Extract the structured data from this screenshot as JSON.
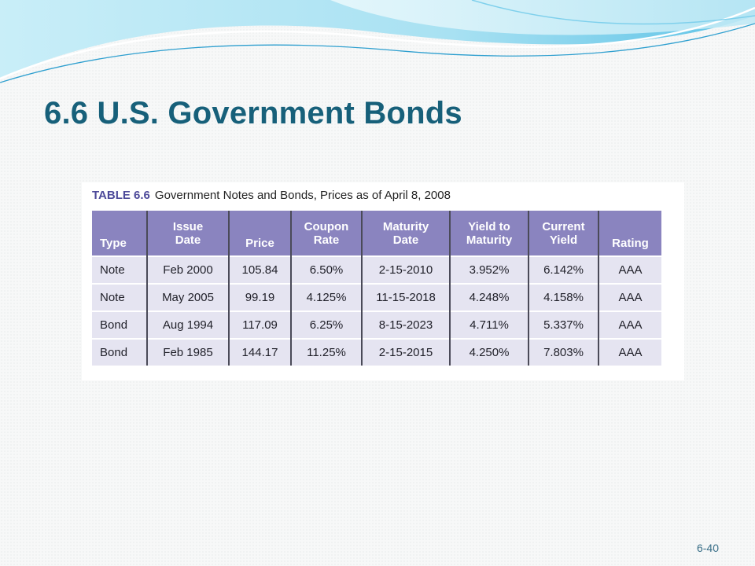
{
  "slide": {
    "title": "6.6 U.S. Government Bonds",
    "page_number": "6-40"
  },
  "table": {
    "label": "TABLE 6.6",
    "caption": "Government Notes and Bonds, Prices as of April 8, 2008",
    "headers": {
      "type": "Type",
      "issue_date_1": "Issue",
      "issue_date_2": "Date",
      "price": "Price",
      "coupon_1": "Coupon",
      "coupon_2": "Rate",
      "maturity_1": "Maturity",
      "maturity_2": "Date",
      "ytm_1": "Yield to",
      "ytm_2": "Maturity",
      "cy_1": "Current",
      "cy_2": "Yield",
      "rating": "Rating"
    },
    "rows": [
      [
        "Note",
        "Feb 2000",
        "105.84",
        "6.50%",
        "2-15-2010",
        "3.952%",
        "6.142%",
        "AAA"
      ],
      [
        "Note",
        "May 2005",
        "99.19",
        "4.125%",
        "11-15-2018",
        "4.248%",
        "4.158%",
        "AAA"
      ],
      [
        "Bond",
        "Aug 1994",
        "117.09",
        "6.25%",
        "8-15-2023",
        "4.711%",
        "5.337%",
        "AAA"
      ],
      [
        "Bond",
        "Feb 1985",
        "144.17",
        "11.25%",
        "2-15-2015",
        "4.250%",
        "7.803%",
        "AAA"
      ]
    ]
  },
  "colors": {
    "title": "#17607a",
    "header_bg": "#8a84bf",
    "row_bg": "#e5e4f1",
    "wave_light": "#bfe9f5",
    "wave_dark": "#2e9fcf"
  }
}
